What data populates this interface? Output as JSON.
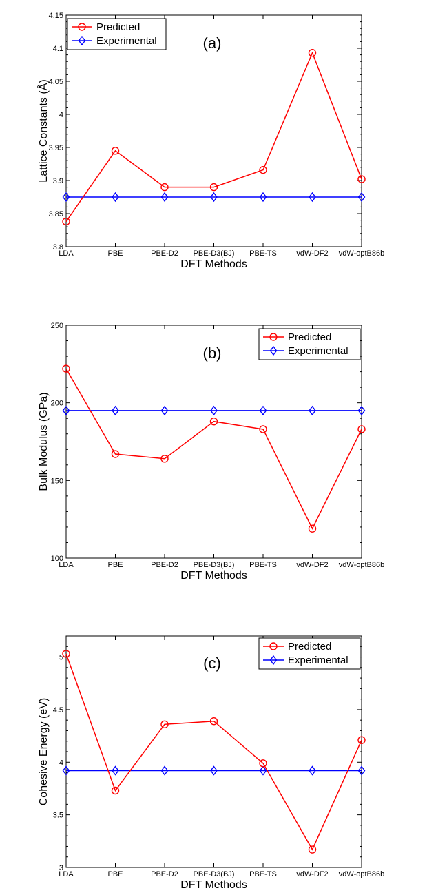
{
  "chart_data": [
    {
      "type": "line",
      "panel_label": "(a)",
      "xlabel": "DFT Methods",
      "ylabel": "Lattice Constants (Å)",
      "categories": [
        "LDA",
        "PBE",
        "PBE-D2",
        "PBE-D3(BJ)",
        "PBE-TS",
        "vdW-DF2",
        "vdW-optB86b"
      ],
      "ylim": [
        3.8,
        4.15
      ],
      "yticks": [
        3.8,
        3.85,
        3.9,
        3.95,
        4,
        4.05,
        4.1,
        4.15
      ],
      "ytick_labels": [
        "3.8",
        "3.85",
        "3.9",
        "3.95",
        "4",
        "4.05",
        "4.1",
        "4.15"
      ],
      "legend_position": "top-left",
      "series": [
        {
          "name": "Predicted",
          "color": "#ff0000",
          "marker": "circle",
          "values": [
            3.838,
            3.945,
            3.89,
            3.89,
            3.916,
            4.093,
            3.902
          ]
        },
        {
          "name": "Experimental",
          "color": "#0000ff",
          "marker": "diamond",
          "values": [
            3.875,
            3.875,
            3.875,
            3.875,
            3.875,
            3.875,
            3.875
          ]
        }
      ]
    },
    {
      "type": "line",
      "panel_label": "(b)",
      "xlabel": "DFT Methods",
      "ylabel": "Bulk Modulus (GPa)",
      "categories": [
        "LDA",
        "PBE",
        "PBE-D2",
        "PBE-D3(BJ)",
        "PBE-TS",
        "vdW-DF2",
        "vdW-optB86b"
      ],
      "ylim": [
        100,
        250
      ],
      "yticks": [
        100,
        150,
        200,
        250
      ],
      "ytick_labels": [
        "100",
        "150",
        "200",
        "250"
      ],
      "legend_position": "top-right",
      "series": [
        {
          "name": "Predicted",
          "color": "#ff0000",
          "marker": "circle",
          "values": [
            222,
            167,
            164,
            188,
            183,
            119,
            183
          ]
        },
        {
          "name": "Experimental",
          "color": "#0000ff",
          "marker": "diamond",
          "values": [
            195,
            195,
            195,
            195,
            195,
            195,
            195
          ]
        }
      ]
    },
    {
      "type": "line",
      "panel_label": "(c)",
      "xlabel": "DFT Methods",
      "ylabel": "Cohesive Energy (eV)",
      "categories": [
        "LDA",
        "PBE",
        "PBE-D2",
        "PBE-D3(BJ)",
        "PBE-TS",
        "vdW-DF2",
        "vdW-optB86b"
      ],
      "ylim": [
        3,
        5.2
      ],
      "yticks": [
        3,
        3.5,
        4,
        4.5,
        5
      ],
      "ytick_labels": [
        "3",
        "3.5",
        "4",
        "4.5",
        "5"
      ],
      "legend_position": "top-right",
      "series": [
        {
          "name": "Predicted",
          "color": "#ff0000",
          "marker": "circle",
          "values": [
            5.03,
            3.73,
            4.36,
            4.39,
            3.99,
            3.17,
            4.21
          ]
        },
        {
          "name": "Experimental",
          "color": "#0000ff",
          "marker": "diamond",
          "values": [
            3.92,
            3.92,
            3.92,
            3.92,
            3.92,
            3.92,
            3.92
          ]
        }
      ]
    }
  ]
}
